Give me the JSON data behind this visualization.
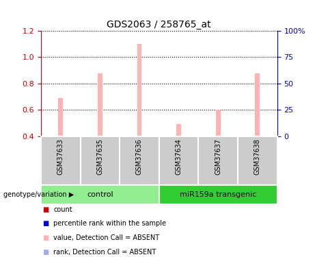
{
  "title": "GDS2063 / 258765_at",
  "samples": [
    "GSM37633",
    "GSM37635",
    "GSM37636",
    "GSM37634",
    "GSM37637",
    "GSM37638"
  ],
  "values": [
    0.69,
    0.88,
    1.1,
    0.49,
    0.6,
    0.88
  ],
  "rank_values": [
    0.404,
    0.404,
    0.403,
    0.404,
    0.404,
    0.404
  ],
  "ylim_left": [
    0.4,
    1.2
  ],
  "ylim_right": [
    0,
    100
  ],
  "yticks_left": [
    0.4,
    0.6,
    0.8,
    1.0,
    1.2
  ],
  "yticks_right": [
    0,
    25,
    50,
    75,
    100
  ],
  "ytick_labels_right": [
    "0",
    "25",
    "50",
    "75",
    "100%"
  ],
  "bar_color": "#ffb3b3",
  "rank_bar_color": "#aaaaee",
  "control_label": "control",
  "transgenic_label": "miR159a transgenic",
  "control_color": "#90ee90",
  "transgenic_color": "#33cc33",
  "group_label_area_color": "#cccccc",
  "legend_items": [
    {
      "label": "count",
      "color": "#cc0000"
    },
    {
      "label": "percentile rank within the sample",
      "color": "#0000cc"
    },
    {
      "label": "value, Detection Call = ABSENT",
      "color": "#ffb3b3"
    },
    {
      "label": "rank, Detection Call = ABSENT",
      "color": "#aaaaee"
    }
  ],
  "left_axis_color": "#cc0000",
  "right_axis_color": "#0000cc",
  "genotype_label": "genotype/variation"
}
